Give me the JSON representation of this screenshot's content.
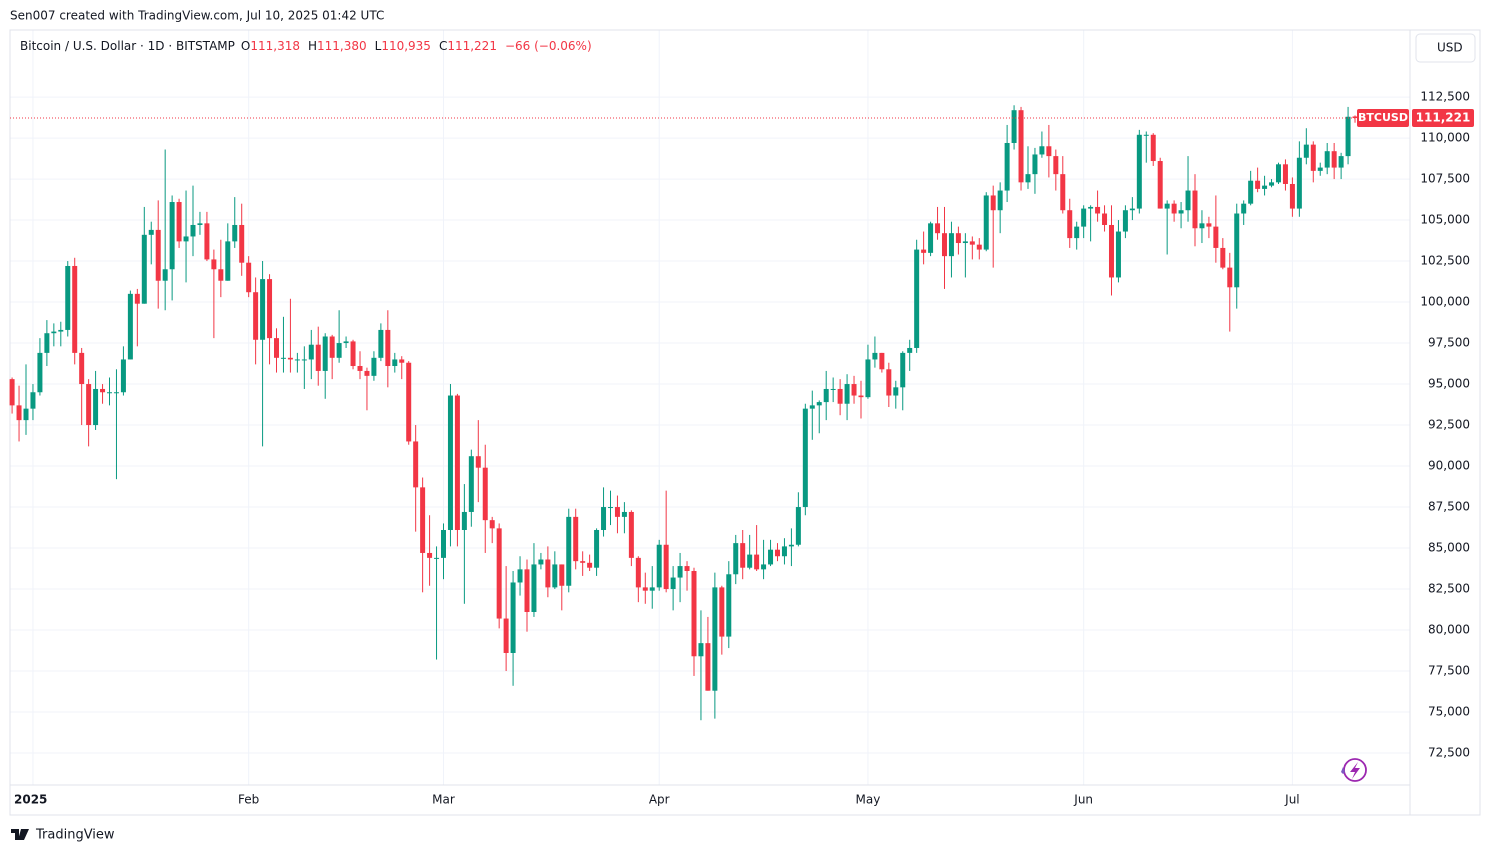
{
  "header": {
    "credit": "Sen007 created with TradingView.com, Jul 10, 2025 01:42 UTC",
    "symbol": "Bitcoin / U.S. Dollar · 1D · BITSTAMP",
    "legend": [
      {
        "key": "O",
        "value": "111,318"
      },
      {
        "key": "H",
        "value": "111,380"
      },
      {
        "key": "L",
        "value": "110,935"
      },
      {
        "key": "C",
        "value": "111,221"
      }
    ],
    "change": "−66 (−0.06%)",
    "currency": "USD"
  },
  "footer": {
    "logo": "TradingView"
  },
  "chart_data": {
    "type": "candlestick",
    "up_color": "#089981",
    "down_color": "#f23645",
    "open": [
      95300,
      93700,
      92800,
      93500,
      94500,
      96900,
      98100,
      98200,
      98300,
      102200,
      96900,
      95000,
      92500,
      94700,
      94500,
      94500,
      94500,
      96500,
      100500,
      99900,
      104100,
      104400,
      101300,
      102000,
      106100,
      103700,
      104000,
      104700,
      104800,
      102600,
      102000,
      101300,
      103700,
      104700,
      102400,
      100600,
      97700,
      101400,
      97800,
      96600,
      96600,
      96500,
      96500,
      96500,
      97400,
      95800,
      97900,
      96600,
      97500,
      97600,
      96100,
      95800,
      95500,
      96600,
      98300,
      96100,
      96500,
      96300,
      91500,
      88700,
      84700,
      84400,
      84400,
      86100,
      94300,
      86100,
      87200,
      90600,
      89900,
      86700,
      86200,
      80700,
      78600,
      82900,
      83700,
      81100,
      84000,
      84300,
      82600,
      84000,
      82700,
      86900,
      84200,
      84100,
      83800,
      86100,
      87500,
      87500,
      86900,
      87200,
      84400,
      82600,
      82400,
      82600,
      85200,
      82500,
      83200,
      83900,
      83600,
      78400,
      79200,
      76300,
      82600,
      79600,
      83400,
      85300,
      83800,
      84600,
      83700,
      84000,
      84900,
      84500,
      85100,
      85200,
      87500,
      93500,
      93700,
      93900,
      94700,
      94700,
      93800,
      95000,
      94300,
      94200,
      96500,
      96900,
      95900,
      94300,
      94800,
      96900,
      97200,
      103200,
      103000,
      104800,
      104200,
      102800,
      104200,
      103600,
      103700,
      103500,
      103200,
      106500,
      105600,
      106800,
      109700,
      111700,
      107300,
      107800,
      109000,
      109500,
      108900,
      107800,
      105600,
      103900,
      104600,
      105700,
      105800,
      105400,
      104700,
      101500,
      104300,
      105600,
      105700,
      110200,
      110200,
      108600,
      105700,
      106000,
      105400,
      105600,
      106800,
      104500,
      104800,
      104600,
      103300,
      102100,
      100900,
      105400,
      106000,
      107400,
      106900,
      107100,
      107300,
      108400,
      107200,
      105700,
      108800,
      109600,
      108000,
      108200,
      109200,
      108200,
      108900,
      111318
    ],
    "high": [
      95400,
      94900,
      96200,
      95000,
      97800,
      98900,
      98700,
      98800,
      102500,
      102700,
      97200,
      95300,
      95800,
      95000,
      95400,
      95900,
      97300,
      100700,
      100800,
      105800,
      104900,
      106200,
      109300,
      106500,
      106300,
      106800,
      107100,
      105500,
      105500,
      103200,
      103800,
      104800,
      106400,
      106000,
      102800,
      101500,
      102500,
      101700,
      98400,
      99100,
      100200,
      96900,
      97300,
      98300,
      98500,
      98100,
      98000,
      99500,
      97900,
      97700,
      97000,
      96000,
      97000,
      98700,
      99500,
      96900,
      96700,
      96400,
      92500,
      89300,
      87000,
      85100,
      86500,
      95000,
      94400,
      88900,
      91000,
      92800,
      91300,
      86900,
      86500,
      83900,
      83600,
      84500,
      84300,
      85300,
      84700,
      85100,
      84800,
      84000,
      87400,
      87400,
      84800,
      84600,
      86200,
      88700,
      88500,
      88200,
      87800,
      87300,
      84500,
      83500,
      83900,
      85500,
      88500,
      83900,
      84700,
      84200,
      83800,
      81200,
      80800,
      83500,
      82700,
      84200,
      85800,
      86100,
      85800,
      86400,
      85500,
      85500,
      85300,
      85600,
      86200,
      88400,
      93800,
      94600,
      94000,
      95800,
      95400,
      95300,
      95600,
      95500,
      95200,
      97400,
      97900,
      96900,
      96300,
      95200,
      97000,
      97700,
      103800,
      104300,
      104900,
      105800,
      105800,
      104900,
      104600,
      104200,
      104000,
      103900,
      106700,
      107100,
      107300,
      110800,
      112000,
      111900,
      109500,
      109400,
      110400,
      110800,
      109300,
      108900,
      106300,
      104900,
      105900,
      105900,
      106800,
      105900,
      105900,
      105000,
      105900,
      106400,
      110500,
      110400,
      110300,
      108800,
      106200,
      106200,
      106100,
      108900,
      107800,
      105600,
      105200,
      106500,
      103900,
      103000,
      106000,
      106200,
      108000,
      108200,
      107700,
      107500,
      108500,
      108700,
      107600,
      109800,
      110600,
      109800,
      108500,
      109700,
      109700,
      109100,
      111900,
      111380
    ],
    "low": [
      93200,
      91500,
      91900,
      92800,
      94300,
      96100,
      97300,
      97300,
      97900,
      96200,
      92500,
      91200,
      92200,
      93800,
      93700,
      89200,
      94300,
      96500,
      97300,
      99900,
      102300,
      99600,
      99500,
      100100,
      103300,
      101200,
      102800,
      104100,
      102500,
      97800,
      100300,
      101300,
      103300,
      101600,
      100300,
      96200,
      91200,
      96200,
      95700,
      95700,
      95700,
      95700,
      94700,
      95300,
      94900,
      94100,
      95300,
      96300,
      97200,
      95900,
      95300,
      93400,
      95200,
      96400,
      94800,
      95700,
      95300,
      91300,
      86000,
      82300,
      82700,
      78200,
      83100,
      85100,
      85100,
      81600,
      86300,
      87800,
      84700,
      85300,
      80100,
      77500,
      76600,
      82100,
      79900,
      80800,
      83700,
      82000,
      82500,
      81200,
      82300,
      83700,
      83300,
      83600,
      83300,
      85700,
      86400,
      85900,
      85900,
      83900,
      81700,
      81600,
      81300,
      82400,
      82300,
      81200,
      81700,
      82400,
      77200,
      74500,
      76300,
      74600,
      78500,
      78900,
      82800,
      83100,
      83700,
      83600,
      83100,
      83900,
      84200,
      84000,
      83900,
      85100,
      87000,
      91600,
      92000,
      92800,
      93900,
      93100,
      92800,
      93800,
      92900,
      94100,
      96000,
      95700,
      93600,
      93500,
      93400,
      95800,
      96900,
      102300,
      102800,
      103800,
      100800,
      101500,
      102900,
      101500,
      102600,
      102600,
      103100,
      102100,
      104200,
      106100,
      109300,
      106800,
      106900,
      106600,
      108800,
      107600,
      106800,
      105400,
      103300,
      103200,
      103900,
      103700,
      104900,
      104300,
      100400,
      101200,
      103900,
      105000,
      105400,
      108500,
      108300,
      105700,
      102900,
      104900,
      104500,
      104900,
      103400,
      103600,
      103900,
      102400,
      102000,
      98200,
      99600,
      104700,
      105900,
      106700,
      106500,
      107000,
      107200,
      106800,
      105200,
      105200,
      108400,
      107300,
      107700,
      107800,
      107500,
      107500,
      108400,
      110935
    ],
    "close": [
      93700,
      92800,
      93500,
      94500,
      96900,
      98100,
      98200,
      98300,
      102200,
      96900,
      95000,
      92500,
      94700,
      94500,
      94500,
      94500,
      96500,
      100500,
      99900,
      104100,
      104400,
      101300,
      102000,
      106100,
      103700,
      104000,
      104700,
      104800,
      102600,
      102000,
      101300,
      103700,
      104700,
      102400,
      100600,
      97700,
      101400,
      97800,
      96600,
      96600,
      96500,
      96500,
      96500,
      97400,
      95800,
      97900,
      96600,
      97500,
      97600,
      96100,
      95800,
      95500,
      96600,
      98300,
      96100,
      96500,
      96300,
      91500,
      88700,
      84700,
      84400,
      84400,
      86100,
      94300,
      86100,
      87200,
      90600,
      89900,
      86700,
      86200,
      80700,
      78600,
      82900,
      83700,
      81100,
      84000,
      84300,
      82600,
      84000,
      82700,
      86900,
      84200,
      84100,
      83800,
      86100,
      87500,
      87500,
      86900,
      87200,
      84400,
      82600,
      82400,
      82600,
      85200,
      82500,
      83200,
      83900,
      83600,
      78400,
      79200,
      76300,
      82600,
      79600,
      83400,
      85300,
      83800,
      84600,
      83700,
      84000,
      84900,
      84500,
      85100,
      85200,
      87500,
      93500,
      93700,
      93900,
      94700,
      94700,
      93800,
      95000,
      94300,
      94200,
      96500,
      96900,
      95900,
      94300,
      94800,
      96900,
      97200,
      103200,
      103000,
      104800,
      104200,
      102800,
      104200,
      103600,
      103700,
      103500,
      103200,
      106500,
      105600,
      106800,
      109700,
      111700,
      107300,
      107800,
      109000,
      109500,
      108900,
      107800,
      105600,
      103900,
      104600,
      105700,
      105800,
      105400,
      104700,
      101500,
      104300,
      105600,
      105700,
      110200,
      110200,
      108600,
      105700,
      106000,
      105400,
      105600,
      106800,
      104500,
      104800,
      104600,
      103300,
      102100,
      100900,
      105400,
      106000,
      107400,
      106900,
      107100,
      107300,
      108400,
      107200,
      105700,
      108800,
      109600,
      108000,
      108200,
      109200,
      108200,
      108900,
      111300,
      111221
    ],
    "xlim": [
      -0.3,
      200.9
    ],
    "xticks": [
      {
        "value": 3,
        "label": "2025"
      },
      {
        "value": 34,
        "label": "Feb"
      },
      {
        "value": 62,
        "label": "Mar"
      },
      {
        "value": 93,
        "label": "Apr"
      },
      {
        "value": 123,
        "label": "May"
      },
      {
        "value": 154,
        "label": "Jun"
      },
      {
        "value": 184,
        "label": "Jul"
      }
    ],
    "ylim": [
      70550,
      116590
    ],
    "yticks": [
      {
        "value": 72500,
        "label": "72,500"
      },
      {
        "value": 75000,
        "label": "75,000"
      },
      {
        "value": 77500,
        "label": "77,500"
      },
      {
        "value": 80000,
        "label": "80,000"
      },
      {
        "value": 82500,
        "label": "82,500"
      },
      {
        "value": 85000,
        "label": "85,000"
      },
      {
        "value": 87500,
        "label": "87,500"
      },
      {
        "value": 90000,
        "label": "90,000"
      },
      {
        "value": 92500,
        "label": "92,500"
      },
      {
        "value": 95000,
        "label": "95,000"
      },
      {
        "value": 97500,
        "label": "97,500"
      },
      {
        "value": 100000,
        "label": "100,000"
      },
      {
        "value": 102500,
        "label": "102,500"
      },
      {
        "value": 105000,
        "label": "105,000"
      },
      {
        "value": 107500,
        "label": "107,500"
      },
      {
        "value": 110000,
        "label": "110,000"
      },
      {
        "value": 112500,
        "label": "112,500"
      }
    ],
    "grid": true,
    "last_price": {
      "value": 111221,
      "label": "111,221",
      "name": "BTCUSD"
    }
  }
}
